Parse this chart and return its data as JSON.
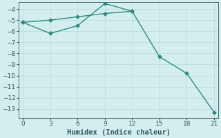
{
  "line1_x": [
    0,
    3,
    6,
    9,
    12
  ],
  "line1_y": [
    -5.2,
    -5.0,
    -4.7,
    -4.4,
    -4.2
  ],
  "line2_x": [
    0,
    3,
    6,
    9,
    12,
    15,
    18,
    21
  ],
  "line2_y": [
    -5.2,
    -6.2,
    -5.5,
    -3.5,
    -4.2,
    -8.3,
    -9.8,
    -13.3
  ],
  "color": "#2e8b7a",
  "bg_color": "#d4eeef",
  "grid_color": "#b8dde0",
  "xlabel": "Humidex (Indice chaleur)",
  "xlim": [
    -0.5,
    21.5
  ],
  "ylim": [
    -13.8,
    -3.4
  ],
  "xticks": [
    0,
    3,
    6,
    9,
    12,
    15,
    18,
    21
  ],
  "yticks": [
    -4,
    -5,
    -6,
    -7,
    -8,
    -9,
    -10,
    -11,
    -12,
    -13
  ],
  "marker": "D",
  "markersize": 2.5,
  "linewidth": 1.0,
  "font_color": "#2e5a5e",
  "tick_fontsize": 6.5,
  "xlabel_fontsize": 7.5
}
